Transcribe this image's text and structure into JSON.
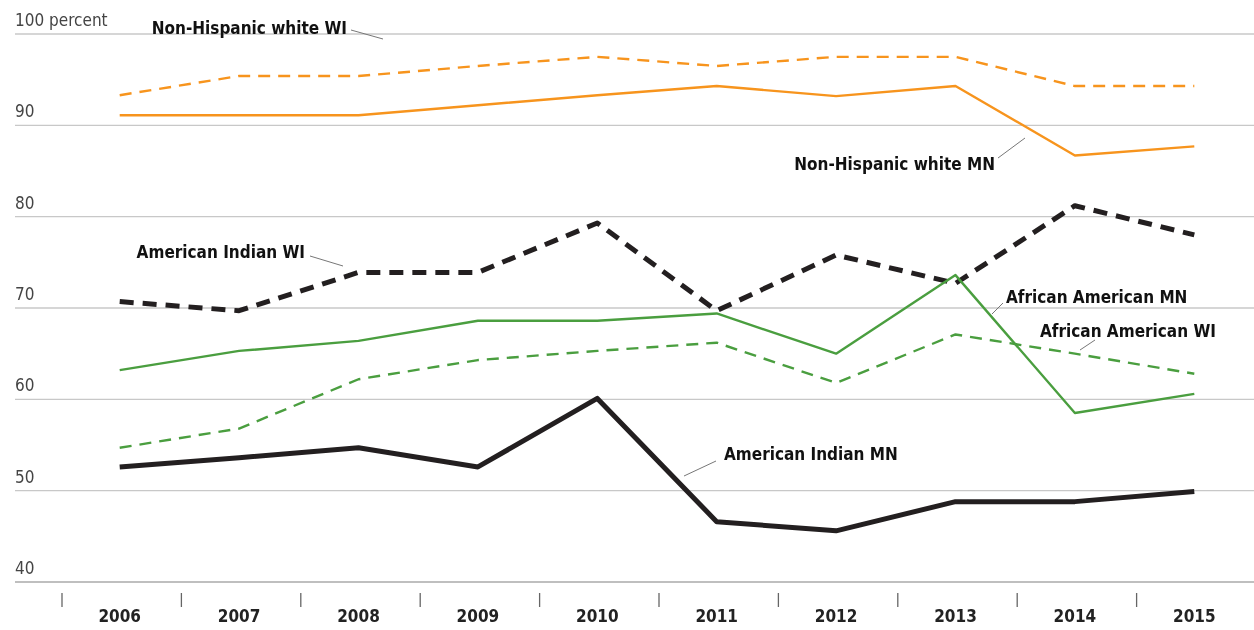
{
  "chart_data": {
    "type": "line",
    "categories": [
      "2006",
      "2007",
      "2008",
      "2009",
      "2010",
      "2011",
      "2012",
      "2013",
      "2014",
      "2015"
    ],
    "ylim": [
      40,
      100
    ],
    "yticks": [
      40,
      50,
      60,
      70,
      80,
      90,
      {
        "value": 100,
        "label": "100 percent"
      }
    ],
    "grid": "y",
    "marker": "none",
    "series": [
      {
        "name": "Non-Hispanic white WI",
        "color": "#f7941d",
        "line_style": "dashed",
        "values": [
          93.3,
          95.4,
          95.4,
          96.5,
          97.5,
          96.5,
          97.5,
          97.5,
          94.3,
          94.3
        ]
      },
      {
        "name": "Non-Hispanic white MN",
        "color": "#f7941d",
        "line_style": "solid",
        "values": [
          91.1,
          91.1,
          91.1,
          92.2,
          93.3,
          94.3,
          93.2,
          94.3,
          86.7,
          87.7
        ]
      },
      {
        "name": "American Indian WI",
        "color": "#231f20",
        "line_style": "dashed",
        "values": [
          70.7,
          69.7,
          73.9,
          73.9,
          79.3,
          69.7,
          75.8,
          72.7,
          81.2,
          78.0
        ]
      },
      {
        "name": "African American MN",
        "color": "#4a9e3f",
        "line_style": "solid",
        "values": [
          63.2,
          65.3,
          66.4,
          68.6,
          68.6,
          69.4,
          65.0,
          73.6,
          58.5,
          60.6
        ]
      },
      {
        "name": "African American WI",
        "color": "#4a9e3f",
        "line_style": "dashed",
        "values": [
          54.7,
          56.8,
          62.2,
          64.3,
          65.3,
          66.2,
          61.8,
          67.1,
          65.0,
          62.8
        ]
      },
      {
        "name": "American Indian MN",
        "color": "#231f20",
        "line_style": "solid",
        "values": [
          52.6,
          53.6,
          54.7,
          52.6,
          60.1,
          46.6,
          45.6,
          48.8,
          48.8,
          49.9
        ]
      }
    ]
  }
}
